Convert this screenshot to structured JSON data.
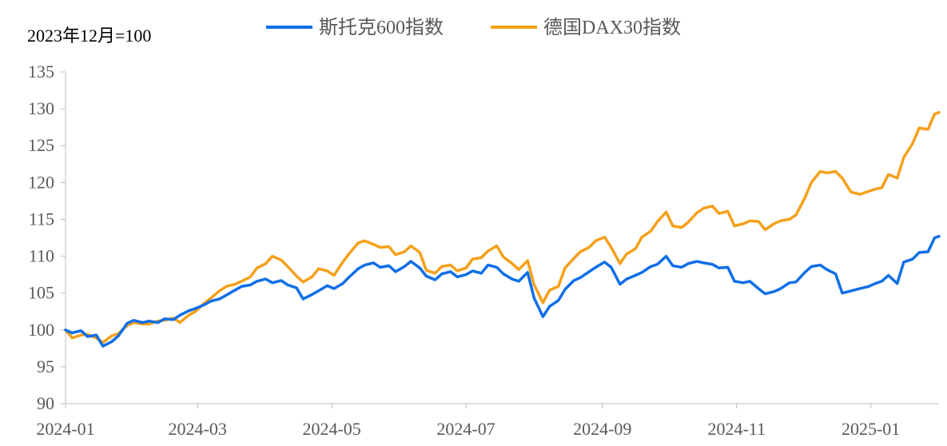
{
  "chart_data": {
    "type": "line",
    "unit_label": "2023年12月=100",
    "x_range": [
      "2024-01-01",
      "2025-02-01"
    ],
    "ylim": [
      90,
      135
    ],
    "y_ticks": [
      90,
      95,
      100,
      105,
      110,
      115,
      120,
      125,
      130,
      135
    ],
    "x_ticks": [
      "2024-01",
      "2024-03",
      "2024-05",
      "2024-07",
      "2024-09",
      "2024-11",
      "2025-01"
    ],
    "grid": false,
    "legend_position": "top-center",
    "series": [
      {
        "name": "斯托克600指数",
        "color": "#0f6fe8",
        "points": [
          [
            "2024-01-01",
            100.0
          ],
          [
            "2024-01-04",
            99.6
          ],
          [
            "2024-01-08",
            99.9
          ],
          [
            "2024-01-11",
            99.1
          ],
          [
            "2024-01-15",
            99.3
          ],
          [
            "2024-01-18",
            97.8
          ],
          [
            "2024-01-22",
            98.4
          ],
          [
            "2024-01-25",
            99.2
          ],
          [
            "2024-01-29",
            100.9
          ],
          [
            "2024-02-01",
            101.3
          ],
          [
            "2024-02-05",
            101.0
          ],
          [
            "2024-02-08",
            101.2
          ],
          [
            "2024-02-12",
            101.0
          ],
          [
            "2024-02-15",
            101.5
          ],
          [
            "2024-02-19",
            101.4
          ],
          [
            "2024-02-22",
            102.0
          ],
          [
            "2024-02-26",
            102.6
          ],
          [
            "2024-02-29",
            102.9
          ],
          [
            "2024-03-04",
            103.4
          ],
          [
            "2024-03-07",
            103.9
          ],
          [
            "2024-03-11",
            104.2
          ],
          [
            "2024-03-14",
            104.7
          ],
          [
            "2024-03-18",
            105.4
          ],
          [
            "2024-03-21",
            105.9
          ],
          [
            "2024-03-25",
            106.1
          ],
          [
            "2024-03-28",
            106.6
          ],
          [
            "2024-04-01",
            106.9
          ],
          [
            "2024-04-04",
            106.4
          ],
          [
            "2024-04-08",
            106.7
          ],
          [
            "2024-04-11",
            106.1
          ],
          [
            "2024-04-15",
            105.7
          ],
          [
            "2024-04-18",
            104.2
          ],
          [
            "2024-04-22",
            104.8
          ],
          [
            "2024-04-25",
            105.3
          ],
          [
            "2024-04-29",
            106.0
          ],
          [
            "2024-05-02",
            105.6
          ],
          [
            "2024-05-06",
            106.3
          ],
          [
            "2024-05-09",
            107.2
          ],
          [
            "2024-05-13",
            108.3
          ],
          [
            "2024-05-16",
            108.8
          ],
          [
            "2024-05-20",
            109.1
          ],
          [
            "2024-05-23",
            108.5
          ],
          [
            "2024-05-27",
            108.7
          ],
          [
            "2024-05-30",
            107.9
          ],
          [
            "2024-06-03",
            108.6
          ],
          [
            "2024-06-06",
            109.3
          ],
          [
            "2024-06-10",
            108.4
          ],
          [
            "2024-06-13",
            107.3
          ],
          [
            "2024-06-17",
            106.8
          ],
          [
            "2024-06-20",
            107.6
          ],
          [
            "2024-06-24",
            107.9
          ],
          [
            "2024-06-27",
            107.2
          ],
          [
            "2024-07-01",
            107.5
          ],
          [
            "2024-07-04",
            108.0
          ],
          [
            "2024-07-08",
            107.7
          ],
          [
            "2024-07-11",
            108.8
          ],
          [
            "2024-07-15",
            108.5
          ],
          [
            "2024-07-18",
            107.6
          ],
          [
            "2024-07-22",
            106.9
          ],
          [
            "2024-07-25",
            106.6
          ],
          [
            "2024-07-29",
            107.8
          ],
          [
            "2024-08-01",
            104.3
          ],
          [
            "2024-08-05",
            101.8
          ],
          [
            "2024-08-08",
            103.2
          ],
          [
            "2024-08-12",
            104.0
          ],
          [
            "2024-08-15",
            105.5
          ],
          [
            "2024-08-19",
            106.7
          ],
          [
            "2024-08-22",
            107.1
          ],
          [
            "2024-08-26",
            107.9
          ],
          [
            "2024-08-29",
            108.5
          ],
          [
            "2024-09-02",
            109.2
          ],
          [
            "2024-09-05",
            108.5
          ],
          [
            "2024-09-09",
            106.2
          ],
          [
            "2024-09-12",
            106.9
          ],
          [
            "2024-09-16",
            107.4
          ],
          [
            "2024-09-19",
            107.8
          ],
          [
            "2024-09-23",
            108.6
          ],
          [
            "2024-09-26",
            108.9
          ],
          [
            "2024-09-30",
            110.0
          ],
          [
            "2024-10-03",
            108.7
          ],
          [
            "2024-10-07",
            108.5
          ],
          [
            "2024-10-10",
            109.0
          ],
          [
            "2024-10-14",
            109.3
          ],
          [
            "2024-10-17",
            109.1
          ],
          [
            "2024-10-21",
            108.9
          ],
          [
            "2024-10-24",
            108.4
          ],
          [
            "2024-10-28",
            108.5
          ],
          [
            "2024-10-31",
            106.6
          ],
          [
            "2024-11-04",
            106.4
          ],
          [
            "2024-11-07",
            106.6
          ],
          [
            "2024-11-11",
            105.6
          ],
          [
            "2024-11-14",
            104.9
          ],
          [
            "2024-11-18",
            105.2
          ],
          [
            "2024-11-21",
            105.6
          ],
          [
            "2024-11-25",
            106.4
          ],
          [
            "2024-11-28",
            106.5
          ],
          [
            "2024-12-02",
            107.8
          ],
          [
            "2024-12-05",
            108.6
          ],
          [
            "2024-12-09",
            108.8
          ],
          [
            "2024-12-12",
            108.2
          ],
          [
            "2024-12-16",
            107.6
          ],
          [
            "2024-12-19",
            105.0
          ],
          [
            "2024-12-23",
            105.3
          ],
          [
            "2024-12-27",
            105.6
          ],
          [
            "2024-12-31",
            105.9
          ],
          [
            "2025-01-03",
            106.3
          ],
          [
            "2025-01-06",
            106.6
          ],
          [
            "2025-01-09",
            107.4
          ],
          [
            "2025-01-13",
            106.3
          ],
          [
            "2025-01-16",
            109.2
          ],
          [
            "2025-01-20",
            109.6
          ],
          [
            "2025-01-23",
            110.5
          ],
          [
            "2025-01-27",
            110.6
          ],
          [
            "2025-01-30",
            112.5
          ],
          [
            "2025-02-01",
            112.7
          ]
        ]
      },
      {
        "name": "德国DAX30指数",
        "color": "#f5a01a",
        "points": [
          [
            "2024-01-01",
            100.0
          ],
          [
            "2024-01-04",
            98.9
          ],
          [
            "2024-01-08",
            99.3
          ],
          [
            "2024-01-11",
            99.4
          ],
          [
            "2024-01-15",
            98.9
          ],
          [
            "2024-01-18",
            98.3
          ],
          [
            "2024-01-22",
            99.2
          ],
          [
            "2024-01-25",
            99.5
          ],
          [
            "2024-01-29",
            100.6
          ],
          [
            "2024-02-01",
            101.0
          ],
          [
            "2024-02-05",
            100.8
          ],
          [
            "2024-02-08",
            100.8
          ],
          [
            "2024-02-12",
            101.2
          ],
          [
            "2024-02-15",
            101.3
          ],
          [
            "2024-02-19",
            101.6
          ],
          [
            "2024-02-22",
            101.0
          ],
          [
            "2024-02-26",
            102.0
          ],
          [
            "2024-02-29",
            102.5
          ],
          [
            "2024-03-04",
            103.6
          ],
          [
            "2024-03-07",
            104.3
          ],
          [
            "2024-03-11",
            105.3
          ],
          [
            "2024-03-14",
            105.9
          ],
          [
            "2024-03-18",
            106.2
          ],
          [
            "2024-03-21",
            106.6
          ],
          [
            "2024-03-25",
            107.2
          ],
          [
            "2024-03-28",
            108.4
          ],
          [
            "2024-04-01",
            109.0
          ],
          [
            "2024-04-04",
            110.0
          ],
          [
            "2024-04-08",
            109.5
          ],
          [
            "2024-04-11",
            108.6
          ],
          [
            "2024-04-15",
            107.3
          ],
          [
            "2024-04-18",
            106.5
          ],
          [
            "2024-04-22",
            107.2
          ],
          [
            "2024-04-25",
            108.3
          ],
          [
            "2024-04-29",
            108.0
          ],
          [
            "2024-05-02",
            107.4
          ],
          [
            "2024-05-06",
            109.2
          ],
          [
            "2024-05-09",
            110.4
          ],
          [
            "2024-05-13",
            111.8
          ],
          [
            "2024-05-16",
            112.1
          ],
          [
            "2024-05-20",
            111.6
          ],
          [
            "2024-05-23",
            111.2
          ],
          [
            "2024-05-27",
            111.3
          ],
          [
            "2024-05-30",
            110.2
          ],
          [
            "2024-06-03",
            110.6
          ],
          [
            "2024-06-06",
            111.4
          ],
          [
            "2024-06-10",
            110.5
          ],
          [
            "2024-06-13",
            108.1
          ],
          [
            "2024-06-17",
            107.7
          ],
          [
            "2024-06-20",
            108.6
          ],
          [
            "2024-06-24",
            108.8
          ],
          [
            "2024-06-27",
            108.0
          ],
          [
            "2024-07-01",
            108.4
          ],
          [
            "2024-07-04",
            109.6
          ],
          [
            "2024-07-08",
            109.8
          ],
          [
            "2024-07-11",
            110.7
          ],
          [
            "2024-07-15",
            111.4
          ],
          [
            "2024-07-18",
            109.9
          ],
          [
            "2024-07-22",
            109.0
          ],
          [
            "2024-07-25",
            108.2
          ],
          [
            "2024-07-29",
            109.4
          ],
          [
            "2024-08-01",
            106.1
          ],
          [
            "2024-08-05",
            103.7
          ],
          [
            "2024-08-08",
            105.4
          ],
          [
            "2024-08-12",
            105.9
          ],
          [
            "2024-08-15",
            108.4
          ],
          [
            "2024-08-19",
            109.7
          ],
          [
            "2024-08-22",
            110.6
          ],
          [
            "2024-08-26",
            111.2
          ],
          [
            "2024-08-29",
            112.1
          ],
          [
            "2024-09-02",
            112.6
          ],
          [
            "2024-09-05",
            111.2
          ],
          [
            "2024-09-09",
            109.0
          ],
          [
            "2024-09-12",
            110.3
          ],
          [
            "2024-09-16",
            111.0
          ],
          [
            "2024-09-19",
            112.6
          ],
          [
            "2024-09-23",
            113.4
          ],
          [
            "2024-09-26",
            114.7
          ],
          [
            "2024-09-30",
            116.0
          ],
          [
            "2024-10-03",
            114.1
          ],
          [
            "2024-10-07",
            113.9
          ],
          [
            "2024-10-10",
            114.6
          ],
          [
            "2024-10-14",
            115.9
          ],
          [
            "2024-10-17",
            116.5
          ],
          [
            "2024-10-21",
            116.8
          ],
          [
            "2024-10-24",
            115.8
          ],
          [
            "2024-10-28",
            116.1
          ],
          [
            "2024-10-31",
            114.1
          ],
          [
            "2024-11-04",
            114.4
          ],
          [
            "2024-11-07",
            114.8
          ],
          [
            "2024-11-11",
            114.7
          ],
          [
            "2024-11-14",
            113.6
          ],
          [
            "2024-11-18",
            114.4
          ],
          [
            "2024-11-21",
            114.8
          ],
          [
            "2024-11-25",
            115.0
          ],
          [
            "2024-11-28",
            115.6
          ],
          [
            "2024-12-02",
            117.9
          ],
          [
            "2024-12-05",
            120.0
          ],
          [
            "2024-12-09",
            121.5
          ],
          [
            "2024-12-12",
            121.3
          ],
          [
            "2024-12-16",
            121.5
          ],
          [
            "2024-12-19",
            120.6
          ],
          [
            "2024-12-23",
            118.7
          ],
          [
            "2024-12-27",
            118.4
          ],
          [
            "2024-12-31",
            118.8
          ],
          [
            "2025-01-03",
            119.1
          ],
          [
            "2025-01-06",
            119.3
          ],
          [
            "2025-01-09",
            121.1
          ],
          [
            "2025-01-13",
            120.6
          ],
          [
            "2025-01-16",
            123.4
          ],
          [
            "2025-01-20",
            125.3
          ],
          [
            "2025-01-23",
            127.4
          ],
          [
            "2025-01-27",
            127.2
          ],
          [
            "2025-01-30",
            129.3
          ],
          [
            "2025-02-01",
            129.5
          ]
        ]
      }
    ]
  }
}
